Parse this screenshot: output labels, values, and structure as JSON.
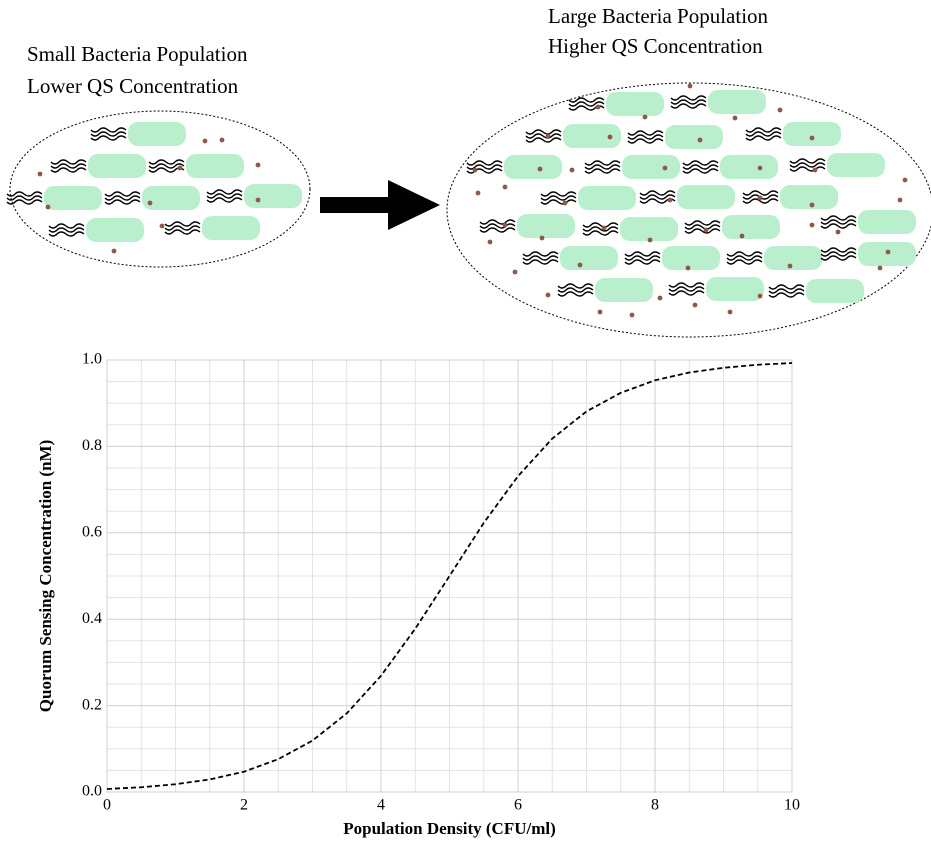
{
  "diagram": {
    "left_caption": [
      "Small Bacteria Population",
      "Lower QS Concentration"
    ],
    "right_caption": [
      "Large Bacteria Population",
      "Higher QS Concentration"
    ]
  },
  "chart_data": {
    "type": "line",
    "xlabel": "Population Density (CFU/ml)",
    "ylabel": "Quorum Sensing Concentration (nM)",
    "x": [
      0,
      0.5,
      1,
      1.5,
      2,
      2.5,
      3,
      3.5,
      4,
      4.5,
      5,
      5.5,
      6,
      6.5,
      7,
      7.5,
      8,
      8.5,
      9,
      9.5,
      10
    ],
    "series": [
      {
        "color": "#000000",
        "dashed": true,
        "values": [
          0.007,
          0.011,
          0.018,
          0.029,
          0.047,
          0.076,
          0.119,
          0.182,
          0.269,
          0.378,
          0.5,
          0.623,
          0.731,
          0.818,
          0.881,
          0.924,
          0.953,
          0.971,
          0.982,
          0.989,
          0.993
        ]
      }
    ],
    "xlim": [
      0,
      10
    ],
    "ylim": [
      0,
      1
    ],
    "xticks": [
      0,
      2,
      4,
      6,
      8,
      10
    ],
    "yticks": [
      {
        "value": 0,
        "label": "0.0"
      },
      0.2,
      0.4,
      0.6,
      0.8,
      {
        "value": 1,
        "label": "1.0"
      }
    ],
    "xminorticks": [
      0.5,
      1,
      1.5,
      2.5,
      3,
      3.5,
      4.5,
      5,
      5.5,
      6.5,
      7,
      7.5,
      8.5,
      9,
      9.5
    ],
    "yminorticks": [
      0.05,
      0.1,
      0.15,
      0.25,
      0.3,
      0.35,
      0.45,
      0.5,
      0.55,
      0.65,
      0.7,
      0.75,
      0.85,
      0.9,
      0.95
    ],
    "grid": true
  }
}
